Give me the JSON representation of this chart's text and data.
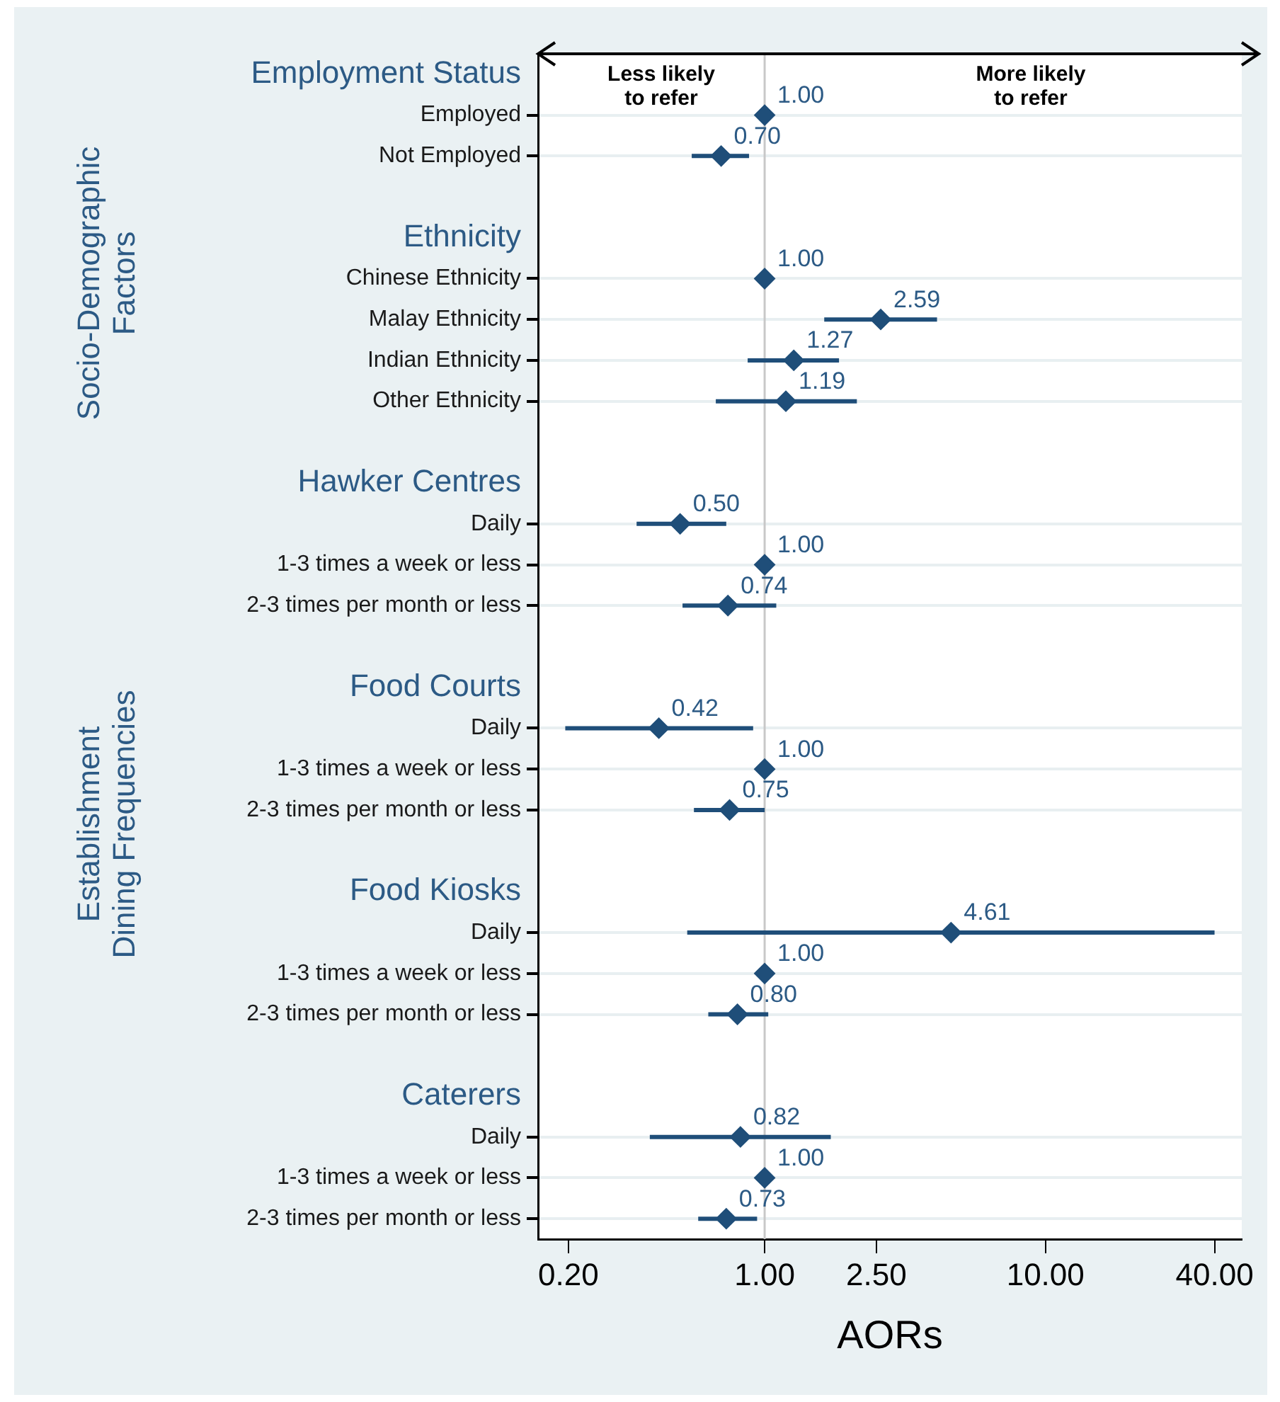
{
  "chart_data": {
    "type": "scatter",
    "orientation": "horizontal",
    "log": "x",
    "grid": "y",
    "marker": "diamond",
    "color": "#1f4e79",
    "xlabel": "AORs",
    "categories": [
      "Employment Status",
      "Employed",
      "Not Employed",
      null,
      "Ethnicity",
      "Chinese Ethnicity",
      "Malay Ethnicity",
      "Indian Ethnicity",
      "Other Ethnicity",
      null,
      "Hawker Centres",
      "Daily",
      "1-3 times a week or less",
      "2-3 times per month or less",
      null,
      "Food Courts",
      "Daily",
      "1-3 times a week or less",
      "2-3 times per month or less",
      null,
      "Food Kiosks",
      "Daily",
      "1-3 times a week or less",
      "2-3 times per month or less",
      null,
      "Caterers",
      "Daily",
      "1-3 times a week or less",
      "2-3 times per month or less"
    ],
    "values": [
      null,
      1.0,
      0.7,
      null,
      null,
      1.0,
      2.59,
      1.27,
      1.19,
      null,
      null,
      0.5,
      1.0,
      0.74,
      null,
      null,
      0.42,
      1.0,
      0.75,
      null,
      null,
      4.61,
      1.0,
      0.8,
      null,
      null,
      0.82,
      1.0,
      0.73
    ],
    "errors": [
      null,
      null,
      [
        0.55,
        0.88
      ],
      null,
      null,
      null,
      [
        1.63,
        4.11
      ],
      [
        0.87,
        1.84
      ],
      [
        0.67,
        2.13
      ],
      null,
      null,
      [
        0.35,
        0.73
      ],
      null,
      [
        0.51,
        1.1
      ],
      null,
      null,
      [
        0.195,
        0.91
      ],
      null,
      [
        0.56,
        1.0
      ],
      null,
      null,
      [
        0.53,
        40
      ],
      null,
      [
        0.63,
        1.03
      ],
      null,
      null,
      [
        0.39,
        1.72
      ],
      null,
      [
        0.58,
        0.94
      ]
    ],
    "value_labels": [
      null,
      "1.00",
      "0.70",
      null,
      null,
      "1.00",
      "2.59",
      "1.27",
      "1.19",
      null,
      null,
      "0.50",
      "1.00",
      "0.74",
      null,
      null,
      "0.42",
      "1.00",
      "0.75",
      null,
      null,
      "4.61",
      "1.00",
      "0.80",
      null,
      null,
      "0.82",
      "1.00",
      "0.73"
    ],
    "xlim": [
      0.156,
      50
    ],
    "xticks": [
      {
        "value": 0.2,
        "label": "0.20"
      },
      {
        "value": 1,
        "label": "1.00"
      },
      {
        "value": 2.5,
        "label": "2.50"
      },
      {
        "value": 10,
        "label": "10.00"
      },
      {
        "value": 40,
        "label": "40.00"
      }
    ],
    "ref_lines": [
      {
        "axis": "x",
        "value": 1,
        "color": "#c8c8c8"
      }
    ],
    "annotations": [
      "Less likely\nto refer",
      "More likely\nto refer",
      "Socio-Demographic\nFactors",
      "Establishment\nDining Frequencies"
    ]
  }
}
